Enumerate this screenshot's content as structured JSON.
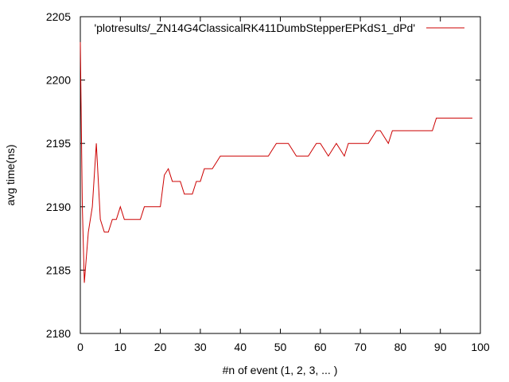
{
  "chart_data": {
    "type": "line",
    "title": "",
    "xlabel": "#n of event (1, 2, 3, ... )",
    "ylabel": "avg time(ns)",
    "xlim": [
      0,
      100
    ],
    "ylim": [
      2180,
      2205
    ],
    "xticks": [
      0,
      10,
      20,
      30,
      40,
      50,
      60,
      70,
      80,
      90,
      100
    ],
    "yticks": [
      2180,
      2185,
      2190,
      2195,
      2200,
      2205
    ],
    "grid": false,
    "legend_position": "top-right",
    "series": [
      {
        "name": "'plotresults/_ZN14G4ClassicalRK411DumbStepperEPKdS1_dPd'",
        "color": "#cc0000",
        "x": [
          0,
          0.5,
          1,
          2,
          3,
          4,
          5,
          6,
          7,
          8,
          9,
          10,
          11,
          12,
          13,
          14,
          15,
          16,
          17,
          18,
          19,
          20,
          21,
          22,
          23,
          24,
          25,
          26,
          27,
          28,
          29,
          30,
          31,
          32,
          33,
          34,
          35,
          36,
          37,
          38,
          39,
          40,
          41,
          42,
          43,
          44,
          45,
          46,
          47,
          48,
          49,
          50,
          51,
          52,
          53,
          54,
          55,
          56,
          57,
          58,
          59,
          60,
          61,
          62,
          63,
          64,
          65,
          66,
          67,
          68,
          69,
          70,
          71,
          72,
          73,
          74,
          75,
          76,
          77,
          78,
          79,
          80,
          81,
          82,
          83,
          84,
          85,
          86,
          87,
          88,
          89,
          90,
          91,
          92,
          93,
          94,
          95,
          96,
          97,
          98
        ],
        "y": [
          2203,
          2190,
          2184,
          2188,
          2190,
          2195,
          2189,
          2188,
          2188,
          2189,
          2189,
          2190,
          2189,
          2189,
          2189,
          2189,
          2189,
          2190,
          2190,
          2190,
          2190,
          2190,
          2192.5,
          2193,
          2192,
          2192,
          2192,
          2191,
          2191,
          2191,
          2192,
          2192,
          2193,
          2193,
          2193,
          2193.5,
          2194,
          2194,
          2194,
          2194,
          2194,
          2194,
          2194,
          2194,
          2194,
          2194,
          2194,
          2194,
          2194,
          2194.5,
          2195,
          2195,
          2195,
          2195,
          2194.5,
          2194,
          2194,
          2194,
          2194,
          2194.5,
          2195,
          2195,
          2194.5,
          2194,
          2194.5,
          2195,
          2194.5,
          2194,
          2195,
          2195,
          2195,
          2195,
          2195,
          2195,
          2195.5,
          2196,
          2196,
          2195.5,
          2195,
          2196,
          2196,
          2196,
          2196,
          2196,
          2196,
          2196,
          2196,
          2196,
          2196,
          2196,
          2197,
          2197,
          2197,
          2197,
          2197,
          2197,
          2197,
          2197,
          2197,
          2197
        ]
      }
    ]
  }
}
